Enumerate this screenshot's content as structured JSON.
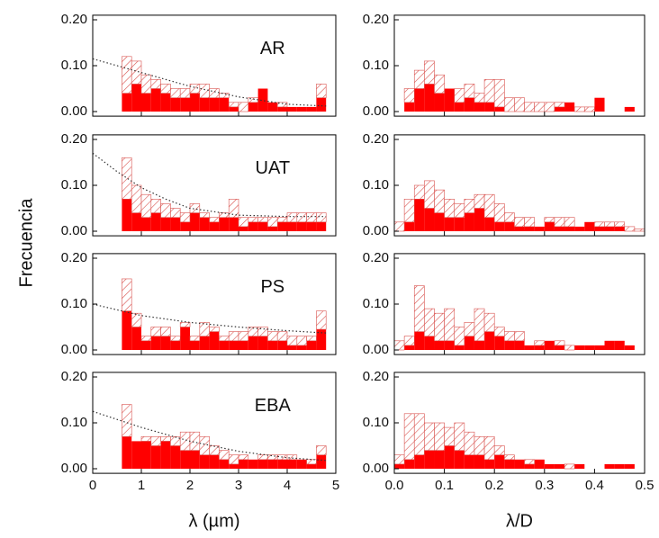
{
  "ylabel": "Frecuencia",
  "chart_data": [
    {
      "type": "histogram",
      "annotation": "AR",
      "xlim": [
        0,
        5
      ],
      "ylim": [
        -0.01,
        0.21
      ],
      "yticks": [
        {
          "value": 0,
          "label": "0.00"
        },
        {
          "value": 0.1,
          "label": "0.10"
        },
        {
          "value": 0.2,
          "label": "0.20"
        }
      ],
      "bins": [
        0.6,
        0.8,
        1.0,
        1.2,
        1.4,
        1.6,
        1.8,
        2.0,
        2.2,
        2.4,
        2.6,
        2.8,
        3.0,
        3.2,
        3.4,
        3.6,
        3.8,
        4.0,
        4.2,
        4.4,
        4.6,
        4.8
      ],
      "series": [
        {
          "color": "#ff0000",
          "values": [
            0.04,
            0.06,
            0.04,
            0.05,
            0.04,
            0.03,
            0.03,
            0.04,
            0.03,
            0.03,
            0.03,
            0.01,
            0.0,
            0.02,
            0.05,
            0.02,
            0.01,
            0.01,
            0.01,
            0.01,
            0.03
          ]
        },
        {
          "color": "#d9534f",
          "pattern": "hatch",
          "values": [
            0.08,
            0.05,
            0.04,
            0.02,
            0.02,
            0.02,
            0.02,
            0.02,
            0.03,
            0.02,
            0.01,
            0.01,
            0.02,
            0.01,
            0.0,
            0.0,
            0.01,
            0.0,
            0.0,
            0.0,
            0.03
          ]
        }
      ],
      "fit": {
        "x": [
          0,
          1,
          2,
          3,
          4,
          4.8
        ],
        "y": [
          0.115,
          0.085,
          0.055,
          0.032,
          0.016,
          0.012
        ]
      }
    },
    {
      "type": "histogram",
      "xlim": [
        0,
        0.5
      ],
      "ylim": [
        -0.01,
        0.21
      ],
      "yticks": [
        {
          "value": 0,
          "label": "0.00"
        },
        {
          "value": 0.1,
          "label": "0.10"
        },
        {
          "value": 0.2,
          "label": "0.20"
        }
      ],
      "bins": [
        0,
        0.02,
        0.04,
        0.06,
        0.08,
        0.1,
        0.12,
        0.14,
        0.16,
        0.18,
        0.2,
        0.22,
        0.24,
        0.26,
        0.28,
        0.3,
        0.32,
        0.34,
        0.36,
        0.38,
        0.4,
        0.42,
        0.44,
        0.46,
        0.48,
        0.5
      ],
      "series": [
        {
          "color": "#ff0000",
          "values": [
            0,
            0.02,
            0.05,
            0.06,
            0.04,
            0.05,
            0.02,
            0.03,
            0.02,
            0.02,
            0.01,
            0,
            0,
            0,
            0,
            0,
            0.01,
            0.02,
            0,
            0,
            0.03,
            0,
            0,
            0.01,
            0
          ]
        },
        {
          "color": "#d9534f",
          "pattern": "hatch",
          "values": [
            0,
            0.03,
            0.04,
            0.05,
            0.04,
            0,
            0.03,
            0.03,
            0.02,
            0.05,
            0.06,
            0.03,
            0.03,
            0.02,
            0.02,
            0.02,
            0.01,
            0,
            0.01,
            0.01,
            0,
            0,
            0,
            0,
            0
          ]
        }
      ]
    },
    {
      "type": "histogram",
      "annotation": "UAT",
      "xlim": [
        0,
        5
      ],
      "ylim": [
        -0.01,
        0.21
      ],
      "yticks": [
        {
          "value": 0,
          "label": "0.00"
        },
        {
          "value": 0.1,
          "label": "0.10"
        },
        {
          "value": 0.2,
          "label": "0.20"
        }
      ],
      "bins": [
        0.6,
        0.8,
        1.0,
        1.2,
        1.4,
        1.6,
        1.8,
        2.0,
        2.2,
        2.4,
        2.6,
        2.8,
        3.0,
        3.2,
        3.4,
        3.6,
        3.8,
        4.0,
        4.2,
        4.4,
        4.6,
        4.8
      ],
      "series": [
        {
          "color": "#ff0000",
          "values": [
            0.07,
            0.04,
            0.03,
            0.04,
            0.03,
            0.03,
            0.02,
            0.04,
            0.03,
            0.02,
            0.03,
            0.03,
            0.01,
            0.02,
            0.02,
            0.01,
            0.02,
            0.02,
            0.02,
            0.02,
            0.02
          ]
        },
        {
          "color": "#d9534f",
          "pattern": "hatch",
          "values": [
            0.09,
            0.06,
            0.05,
            0.03,
            0.03,
            0.02,
            0.02,
            0.02,
            0.01,
            0.01,
            0.01,
            0.04,
            0.02,
            0.01,
            0.01,
            0.02,
            0.01,
            0.02,
            0.02,
            0.02,
            0.02
          ]
        }
      ],
      "fit": {
        "x": [
          0,
          0.5,
          1,
          1.5,
          2,
          3,
          4,
          4.8
        ],
        "y": [
          0.17,
          0.13,
          0.095,
          0.07,
          0.05,
          0.035,
          0.032,
          0.032
        ]
      }
    },
    {
      "type": "histogram",
      "xlim": [
        0,
        0.5
      ],
      "ylim": [
        -0.01,
        0.21
      ],
      "yticks": [
        {
          "value": 0,
          "label": "0.00"
        },
        {
          "value": 0.1,
          "label": "0.10"
        },
        {
          "value": 0.2,
          "label": "0.20"
        }
      ],
      "bins": [
        0,
        0.02,
        0.04,
        0.06,
        0.08,
        0.1,
        0.12,
        0.14,
        0.16,
        0.18,
        0.2,
        0.22,
        0.24,
        0.26,
        0.28,
        0.3,
        0.32,
        0.34,
        0.36,
        0.38,
        0.4,
        0.42,
        0.44,
        0.46,
        0.48,
        0.5
      ],
      "series": [
        {
          "color": "#ff0000",
          "values": [
            0,
            0.02,
            0.07,
            0.05,
            0.04,
            0.03,
            0.03,
            0.04,
            0.05,
            0.03,
            0.02,
            0.02,
            0.01,
            0.01,
            0.01,
            0.02,
            0.01,
            0.01,
            0.01,
            0.02,
            0.01,
            0.01,
            0.01,
            0,
            0
          ]
        },
        {
          "color": "#d9534f",
          "pattern": "hatch",
          "values": [
            0.02,
            0.05,
            0.03,
            0.06,
            0.05,
            0.04,
            0.03,
            0.03,
            0.03,
            0.05,
            0.04,
            0.02,
            0.02,
            0.02,
            0,
            0.01,
            0.02,
            0.02,
            0,
            0,
            0.01,
            0.01,
            0.01,
            0.01,
            0.005
          ]
        }
      ]
    },
    {
      "type": "histogram",
      "annotation": "PS",
      "xlim": [
        0,
        5
      ],
      "ylim": [
        -0.01,
        0.21
      ],
      "yticks": [
        {
          "value": 0,
          "label": "0.00"
        },
        {
          "value": 0.1,
          "label": "0.10"
        },
        {
          "value": 0.2,
          "label": "0.20"
        }
      ],
      "bins": [
        0.6,
        0.8,
        1.0,
        1.2,
        1.4,
        1.6,
        1.8,
        2.0,
        2.2,
        2.4,
        2.6,
        2.8,
        3.0,
        3.2,
        3.4,
        3.6,
        3.8,
        4.0,
        4.2,
        4.4,
        4.6,
        4.8
      ],
      "series": [
        {
          "color": "#ff0000",
          "values": [
            0.085,
            0.05,
            0.02,
            0.03,
            0.03,
            0.02,
            0.05,
            0.02,
            0.03,
            0.04,
            0.02,
            0.02,
            0.02,
            0.03,
            0.03,
            0.02,
            0.02,
            0.01,
            0.01,
            0.02,
            0.045
          ]
        },
        {
          "color": "#d9534f",
          "pattern": "hatch",
          "values": [
            0.07,
            0.03,
            0.01,
            0.02,
            0.02,
            0.01,
            0.01,
            0.01,
            0.03,
            0.01,
            0.01,
            0.02,
            0.02,
            0.02,
            0.02,
            0.02,
            0.02,
            0.02,
            0.02,
            0.01,
            0.04
          ]
        }
      ],
      "fit": {
        "x": [
          0,
          1,
          2,
          3,
          4,
          4.8
        ],
        "y": [
          0.1,
          0.075,
          0.06,
          0.05,
          0.042,
          0.037
        ]
      }
    },
    {
      "type": "histogram",
      "xlim": [
        0,
        0.5
      ],
      "ylim": [
        -0.01,
        0.21
      ],
      "yticks": [
        {
          "value": 0,
          "label": "0.00"
        },
        {
          "value": 0.1,
          "label": "0.10"
        },
        {
          "value": 0.2,
          "label": "0.20"
        }
      ],
      "bins": [
        0,
        0.02,
        0.04,
        0.06,
        0.08,
        0.1,
        0.12,
        0.14,
        0.16,
        0.18,
        0.2,
        0.22,
        0.24,
        0.26,
        0.28,
        0.3,
        0.32,
        0.34,
        0.36,
        0.38,
        0.4,
        0.42,
        0.44,
        0.46,
        0.48,
        0.5
      ],
      "series": [
        {
          "color": "#ff0000",
          "values": [
            0,
            0.01,
            0.04,
            0.03,
            0.02,
            0.02,
            0.01,
            0.03,
            0.02,
            0.04,
            0.03,
            0.02,
            0.02,
            0.01,
            0.01,
            0.02,
            0.01,
            0,
            0.01,
            0.01,
            0.01,
            0.02,
            0.02,
            0.01,
            0
          ]
        },
        {
          "color": "#d9534f",
          "pattern": "hatch",
          "values": [
            0.02,
            0.02,
            0.1,
            0.06,
            0.06,
            0.07,
            0.04,
            0.03,
            0.07,
            0.04,
            0.02,
            0.02,
            0.02,
            0,
            0.01,
            0,
            0.01,
            0.01,
            0,
            0,
            0,
            0,
            0,
            0,
            0
          ]
        }
      ]
    },
    {
      "type": "histogram",
      "annotation": "EBA",
      "xlim": [
        0,
        5
      ],
      "ylim": [
        -0.01,
        0.21
      ],
      "xlabel": "λ (µm)",
      "yticks": [
        {
          "value": 0,
          "label": "0.00"
        },
        {
          "value": 0.1,
          "label": "0.10"
        },
        {
          "value": 0.2,
          "label": "0.20"
        }
      ],
      "xticks": [
        0,
        1,
        2,
        3,
        4,
        5
      ],
      "bins": [
        0.6,
        0.8,
        1.0,
        1.2,
        1.4,
        1.6,
        1.8,
        2.0,
        2.2,
        2.4,
        2.6,
        2.8,
        3.0,
        3.2,
        3.4,
        3.6,
        3.8,
        4.0,
        4.2,
        4.4,
        4.6,
        4.8
      ],
      "series": [
        {
          "color": "#ff0000",
          "values": [
            0.07,
            0.06,
            0.06,
            0.05,
            0.06,
            0.05,
            0.04,
            0.04,
            0.03,
            0.03,
            0.02,
            0.01,
            0.02,
            0.02,
            0.02,
            0.02,
            0.02,
            0.02,
            0.02,
            0.01,
            0.03
          ]
        },
        {
          "color": "#d9534f",
          "pattern": "hatch",
          "values": [
            0.07,
            0,
            0.01,
            0.02,
            0.01,
            0.02,
            0.04,
            0.04,
            0.04,
            0.02,
            0.02,
            0.02,
            0.01,
            0,
            0.01,
            0.01,
            0.01,
            0.01,
            0,
            0.01,
            0.02
          ]
        }
      ],
      "fit": {
        "x": [
          0,
          1,
          2,
          3,
          4,
          4.8
        ],
        "y": [
          0.125,
          0.09,
          0.06,
          0.038,
          0.024,
          0.018
        ]
      }
    },
    {
      "type": "histogram",
      "xlim": [
        0,
        0.5
      ],
      "ylim": [
        -0.01,
        0.21
      ],
      "xlabel": "λ/D",
      "yticks": [
        {
          "value": 0,
          "label": "0.00"
        },
        {
          "value": 0.1,
          "label": "0.10"
        },
        {
          "value": 0.2,
          "label": "0.20"
        }
      ],
      "xticks": [
        {
          "value": 0,
          "label": "0.0"
        },
        {
          "value": 0.1,
          "label": "0.1"
        },
        {
          "value": 0.2,
          "label": "0.2"
        },
        {
          "value": 0.3,
          "label": "0.3"
        },
        {
          "value": 0.4,
          "label": "0.4"
        },
        {
          "value": 0.5,
          "label": "0.5"
        }
      ],
      "bins": [
        0,
        0.02,
        0.04,
        0.06,
        0.08,
        0.1,
        0.12,
        0.14,
        0.16,
        0.18,
        0.2,
        0.22,
        0.24,
        0.26,
        0.28,
        0.3,
        0.32,
        0.34,
        0.36,
        0.38,
        0.4,
        0.42,
        0.44,
        0.46,
        0.48,
        0.5
      ],
      "series": [
        {
          "color": "#ff0000",
          "values": [
            0.01,
            0.02,
            0.03,
            0.04,
            0.04,
            0.05,
            0.04,
            0.03,
            0.03,
            0.02,
            0.03,
            0.02,
            0.02,
            0.01,
            0.02,
            0.01,
            0.01,
            0,
            0.01,
            0,
            0,
            0.01,
            0.01,
            0.01,
            0
          ]
        },
        {
          "color": "#d9534f",
          "pattern": "hatch",
          "values": [
            0.02,
            0.1,
            0.09,
            0.06,
            0.06,
            0.04,
            0.06,
            0.05,
            0.04,
            0.05,
            0.02,
            0.01,
            0,
            0.01,
            0,
            0,
            0,
            0.01,
            0,
            0,
            0,
            0,
            0,
            0,
            0
          ]
        }
      ]
    }
  ]
}
